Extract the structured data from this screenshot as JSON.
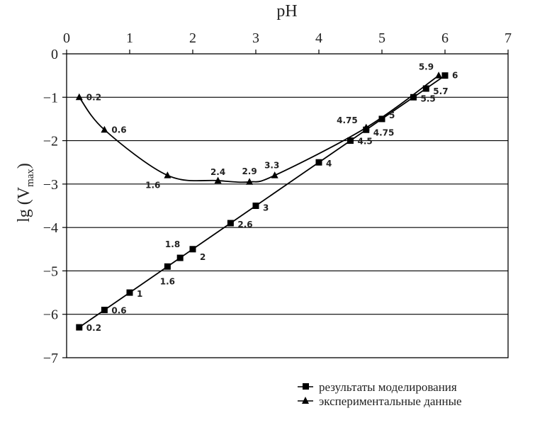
{
  "chart_data": {
    "type": "line",
    "title": "",
    "xlabel": "pH",
    "ylabel": "lg (V",
    "ylabel_sub": "max",
    "ylabel_close": ")",
    "xlim": [
      0,
      7
    ],
    "ylim": [
      -7,
      0
    ],
    "x_ticks": [
      "0",
      "1",
      "2",
      "3",
      "4",
      "5",
      "6",
      "7"
    ],
    "y_ticks": [
      "0",
      "−1",
      "−2",
      "−3",
      "−4",
      "−5",
      "−6",
      "−7"
    ],
    "x_axis_position": "top",
    "grid": "horizontal",
    "legend_position": "bottom-right",
    "series": [
      {
        "name": "результаты моделирования",
        "marker": "square",
        "color": "#000000",
        "points": [
          {
            "x": 0.2,
            "y": -6.3,
            "label": "0.2"
          },
          {
            "x": 0.6,
            "y": -5.9,
            "label": "0.6"
          },
          {
            "x": 1.0,
            "y": -5.5,
            "label": "1"
          },
          {
            "x": 1.6,
            "y": -4.9,
            "label": "1.6"
          },
          {
            "x": 1.8,
            "y": -4.7,
            "label": "1.8"
          },
          {
            "x": 2.0,
            "y": -4.5,
            "label": "2"
          },
          {
            "x": 2.6,
            "y": -3.9,
            "label": "2.6"
          },
          {
            "x": 3.0,
            "y": -3.5,
            "label": "3"
          },
          {
            "x": 4.0,
            "y": -2.5,
            "label": "4"
          },
          {
            "x": 4.5,
            "y": -2.0,
            "label": "4.5"
          },
          {
            "x": 4.75,
            "y": -1.75,
            "label": "4.75"
          },
          {
            "x": 5.0,
            "y": -1.5,
            "label": "5"
          },
          {
            "x": 5.5,
            "y": -1.0,
            "label": "5.5"
          },
          {
            "x": 5.7,
            "y": -0.8,
            "label": "5.7"
          },
          {
            "x": 6.0,
            "y": -0.5,
            "label": "6"
          }
        ]
      },
      {
        "name": "экспериментальные данные",
        "marker": "triangle",
        "color": "#000000",
        "points": [
          {
            "x": 0.2,
            "y": -1.0,
            "label": "0.2"
          },
          {
            "x": 0.6,
            "y": -1.75,
            "label": "0.6"
          },
          {
            "x": 1.6,
            "y": -2.8,
            "label": "1.6"
          },
          {
            "x": 2.4,
            "y": -2.92,
            "label": "2.4"
          },
          {
            "x": 2.9,
            "y": -2.95,
            "label": "2.9"
          },
          {
            "x": 3.3,
            "y": -2.8,
            "label": "3.3"
          },
          {
            "x": 4.75,
            "y": -1.7,
            "label": "4.75"
          },
          {
            "x": 5.9,
            "y": -0.5,
            "label": "5.9"
          }
        ]
      }
    ]
  }
}
